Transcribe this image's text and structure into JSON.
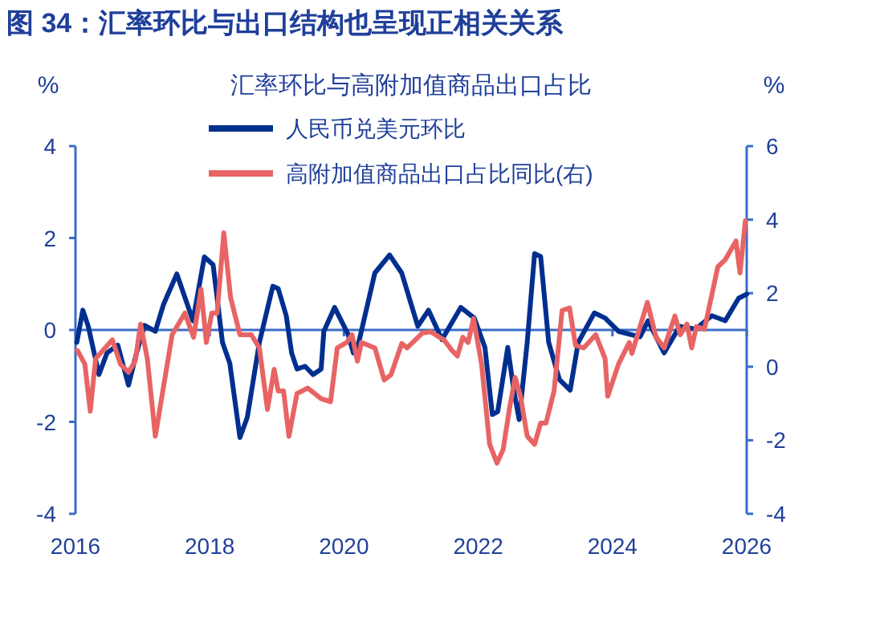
{
  "chart_data": {
    "type": "line",
    "title": "图 34：汇率环比与出口结构也呈现正相关关系",
    "subtitle": "汇率环比与高附加值商品出口占比",
    "ylabel": "%",
    "y2label": "%",
    "xlim": [
      2016,
      2026
    ],
    "xticks": [
      2016,
      2018,
      2020,
      2022,
      2024,
      2026
    ],
    "ylim": [
      -4,
      4
    ],
    "yticks": [
      -4,
      -2,
      0,
      2,
      4
    ],
    "y2lim": [
      -4,
      6
    ],
    "y2ticks": [
      -4,
      -2,
      0,
      2,
      4,
      6
    ],
    "legend": "top left",
    "grid": false,
    "marker": "none",
    "line_style": "solid",
    "ref_lines": [
      {
        "axis": "y",
        "value": 0,
        "color": "#3a6cc8"
      }
    ],
    "series": [
      {
        "name": "人民币兑美元环比",
        "color": "#002f8f",
        "x": [
          2016.02,
          2016.11,
          2016.19,
          2016.35,
          2016.47,
          2016.63,
          2016.79,
          2016.91,
          2017.03,
          2017.19,
          2017.31,
          2017.51,
          2017.75,
          2017.92,
          2018.05,
          2018.19,
          2018.3,
          2018.45,
          2018.56,
          2018.74,
          2018.94,
          2019.02,
          2019.14,
          2019.22,
          2019.3,
          2019.42,
          2019.54,
          2019.66,
          2019.7,
          2019.86,
          2020.06,
          2020.14,
          2020.22,
          2020.46,
          2020.68,
          2020.86,
          2021.1,
          2021.26,
          2021.46,
          2021.74,
          2021.94,
          2022.1,
          2022.21,
          2022.29,
          2022.44,
          2022.53,
          2022.61,
          2022.73,
          2022.84,
          2022.93,
          2023.05,
          2023.21,
          2023.37,
          2023.49,
          2023.73,
          2023.89,
          2024.09,
          2024.41,
          2024.53,
          2024.77,
          2025.0,
          2025.24,
          2025.48,
          2025.68,
          2025.88,
          2026.0
        ],
        "values": [
          -0.27,
          0.43,
          0.08,
          -0.97,
          -0.5,
          -0.33,
          -1.2,
          -0.5,
          0.1,
          -0.03,
          0.55,
          1.22,
          0.2,
          1.59,
          1.42,
          -0.27,
          -0.73,
          -2.34,
          -1.9,
          -0.27,
          0.95,
          0.9,
          0.31,
          -0.5,
          -0.85,
          -0.79,
          -0.97,
          -0.85,
          -0.03,
          0.49,
          -0.09,
          -0.5,
          -0.27,
          1.24,
          1.63,
          1.24,
          0.08,
          0.43,
          -0.21,
          0.49,
          0.26,
          -0.38,
          -1.84,
          -1.78,
          -0.38,
          -1.31,
          -1.95,
          -0.27,
          1.66,
          1.6,
          -0.27,
          -1.08,
          -1.31,
          -0.27,
          0.37,
          0.26,
          -0.03,
          -0.15,
          0.2,
          -0.5,
          0.08,
          0.02,
          0.31,
          0.2,
          0.69,
          0.78
        ]
      },
      {
        "name": "高附加值商品出口占比同比(右)",
        "color": "#e86464",
        "axis": "y2",
        "x": [
          2016.03,
          2016.14,
          2016.22,
          2016.3,
          2016.55,
          2016.67,
          2016.79,
          2016.89,
          2016.97,
          2017.07,
          2017.19,
          2017.44,
          2017.63,
          2017.76,
          2017.87,
          2017.95,
          2018.03,
          2018.11,
          2018.21,
          2018.31,
          2018.45,
          2018.62,
          2018.74,
          2018.86,
          2018.96,
          2019.02,
          2019.1,
          2019.18,
          2019.3,
          2019.46,
          2019.66,
          2019.8,
          2019.9,
          2020.04,
          2020.12,
          2020.2,
          2020.26,
          2020.46,
          2020.6,
          2020.7,
          2020.86,
          2020.94,
          2021.17,
          2021.29,
          2021.49,
          2021.61,
          2021.69,
          2021.77,
          2021.85,
          2021.93,
          2022.05,
          2022.17,
          2022.28,
          2022.37,
          2022.47,
          2022.55,
          2022.63,
          2022.73,
          2022.84,
          2022.93,
          2023.01,
          2023.13,
          2023.25,
          2023.36,
          2023.45,
          2023.57,
          2023.75,
          2023.89,
          2023.93,
          2024.09,
          2024.25,
          2024.29,
          2024.52,
          2024.65,
          2024.77,
          2024.93,
          2025.01,
          2025.11,
          2025.18,
          2025.25,
          2025.37,
          2025.57,
          2025.68,
          2025.84,
          2025.9,
          2025.98
        ],
        "values": [
          0.44,
          0.07,
          -1.21,
          0.22,
          0.73,
          0.07,
          -0.15,
          0.15,
          1.16,
          0.22,
          -1.89,
          0.87,
          1.46,
          0.8,
          2.11,
          0.66,
          1.46,
          1.46,
          3.64,
          1.89,
          0.87,
          0.87,
          0.51,
          -1.16,
          -0.07,
          -0.66,
          -0.66,
          -1.89,
          -0.73,
          -0.58,
          -0.87,
          -0.95,
          0.51,
          0.66,
          0.87,
          0.15,
          0.66,
          0.51,
          -0.36,
          -0.22,
          0.63,
          0.51,
          0.92,
          0.95,
          0.73,
          0.44,
          0.29,
          0.8,
          0.66,
          1.31,
          0.07,
          -2.11,
          -2.62,
          -2.26,
          -1.09,
          -0.29,
          -0.8,
          -1.89,
          -2.11,
          -1.53,
          -1.53,
          -0.66,
          1.53,
          1.6,
          0.58,
          0.51,
          0.87,
          0.22,
          -0.8,
          0.07,
          0.66,
          0.36,
          1.75,
          0.8,
          0.51,
          1.38,
          0.87,
          1.16,
          0.51,
          1.09,
          1.02,
          2.72,
          2.91,
          3.42,
          2.55,
          3.97
        ]
      }
    ]
  }
}
